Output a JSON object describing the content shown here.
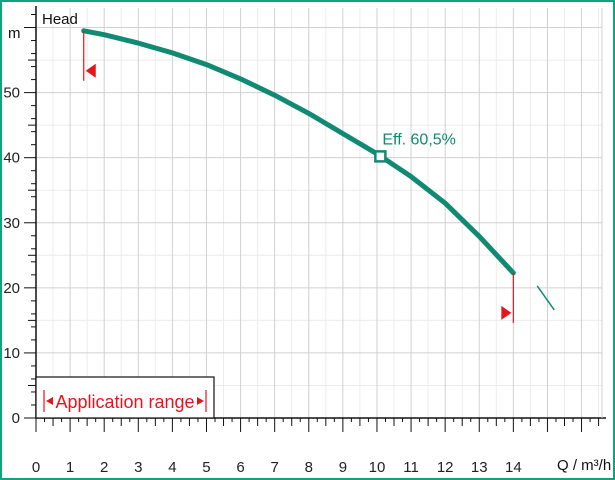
{
  "chart_data": {
    "type": "line",
    "ylabel": "Head",
    "yunit": "m",
    "xlabel": "Q / m³/h",
    "xlim": [
      0,
      16.6
    ],
    "ylim": [
      0,
      63
    ],
    "x_ticks": [
      0,
      1,
      2,
      3,
      4,
      5,
      6,
      7,
      8,
      9,
      10,
      11,
      12,
      13,
      14
    ],
    "y_ticks": [
      0,
      10,
      20,
      30,
      40,
      50
    ],
    "grid": true,
    "curve_color": "#108a72",
    "marker_color": "#e8141c",
    "series": [
      {
        "x": [
          1.4,
          2,
          3,
          4,
          5,
          6,
          7,
          8,
          9,
          10,
          11,
          12,
          13,
          14
        ],
        "y": [
          59.5,
          58.9,
          57.6,
          56.1,
          54.3,
          52.1,
          49.6,
          46.8,
          43.7,
          40.6,
          37.1,
          33.0,
          27.9,
          22.3
        ]
      }
    ],
    "extension": {
      "x": [
        14.7,
        15.2
      ],
      "y": [
        20.3,
        16.6
      ]
    },
    "operating_point": {
      "x": 10.1,
      "y": 40.2,
      "label": "Eff.  60,5%"
    },
    "application_range": {
      "x_min": 1.4,
      "x_max": 14.0,
      "label": "Application range"
    }
  }
}
